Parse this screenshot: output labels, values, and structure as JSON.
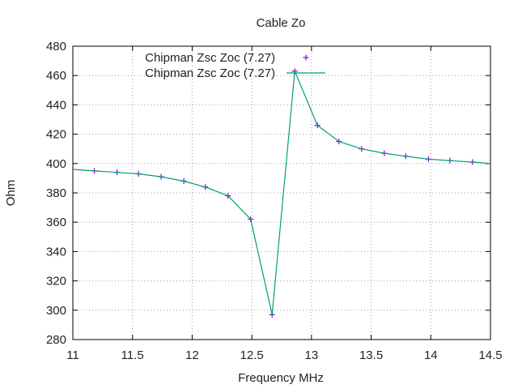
{
  "chart_data": {
    "type": "line",
    "title": "Cable Zo",
    "xlabel": "Frequency MHz",
    "ylabel": "Ohm",
    "xlim": [
      11,
      14.5
    ],
    "ylim": [
      280,
      480
    ],
    "x_ticks": [
      11,
      11.5,
      12,
      12.5,
      13,
      13.5,
      14,
      14.5
    ],
    "x_tick_labels": [
      "11",
      "11.5",
      "12",
      "12.5",
      "13",
      "13.5",
      "14",
      "14.5"
    ],
    "y_ticks": [
      280,
      300,
      320,
      340,
      360,
      380,
      400,
      420,
      440,
      460,
      480
    ],
    "y_tick_labels": [
      "280",
      "300",
      "320",
      "340",
      "360",
      "380",
      "400",
      "420",
      "440",
      "460",
      "480"
    ],
    "grid": true,
    "legend_position": "top-left",
    "series": [
      {
        "name": "Chipman Zsc Zoc (7.27)",
        "style": "points",
        "marker": "plus",
        "color": "#9400d3",
        "x": [
          11.18,
          11.37,
          11.55,
          11.74,
          11.93,
          12.11,
          12.3,
          12.49,
          12.67,
          12.86,
          13.05,
          13.23,
          13.42,
          13.61,
          13.79,
          13.98,
          14.16,
          14.35
        ],
        "y": [
          395,
          394,
          393,
          391,
          388,
          384,
          378,
          362,
          297,
          463,
          426,
          415,
          410,
          407,
          405,
          403,
          402,
          401
        ]
      },
      {
        "name": "Chipman Zsc Zoc (7.27)",
        "style": "line",
        "color": "#009e73",
        "x": [
          11.0,
          11.18,
          11.37,
          11.55,
          11.74,
          11.93,
          12.11,
          12.3,
          12.49,
          12.67,
          12.86,
          13.05,
          13.23,
          13.42,
          13.61,
          13.79,
          13.98,
          14.16,
          14.35,
          14.5
        ],
        "y": [
          396,
          395,
          394,
          393,
          391,
          388,
          384,
          378,
          362,
          297,
          463,
          426,
          415,
          410,
          407,
          405,
          403,
          402,
          401,
          400
        ]
      }
    ]
  }
}
